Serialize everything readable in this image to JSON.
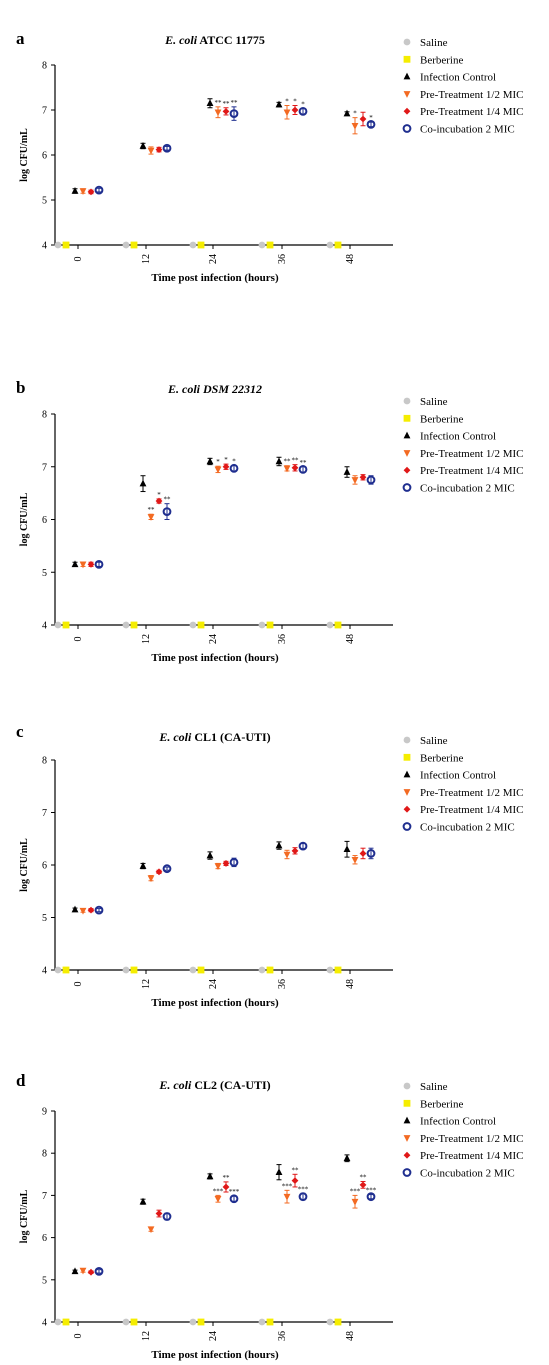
{
  "colors": {
    "saline": "#c8c8c8",
    "berberine": "#f5ed00",
    "infection_control": "#000000",
    "pre_half": "#f36a22",
    "pre_quarter": "#e01818",
    "coinc": "#1f2e8f"
  },
  "chart_data": [
    {
      "type": "scatter",
      "panel": "a",
      "title_parts": [
        {
          "t": "E. coli",
          "i": true
        },
        {
          "t": " ATCC 11775",
          "i": false
        }
      ],
      "xlabel": "Time post infection (hours)",
      "ylabel": "log CFU/mL",
      "categories": [
        "0",
        "12",
        "24",
        "36",
        "48"
      ],
      "ylim": [
        4,
        8
      ],
      "yticks": [
        "4",
        "5",
        "6",
        "7",
        "8"
      ],
      "legend_labels": [
        "Saline",
        "Berberine",
        "Infection Control",
        "Pre-Treatment 1/2 MIC",
        "Pre-Treatment 1/4 MIC",
        "Co-incubation 2 MIC"
      ],
      "series": [
        {
          "name": "Saline",
          "values": [
            4,
            4,
            4,
            4,
            4
          ],
          "err": [
            0,
            0,
            0,
            0,
            0
          ]
        },
        {
          "name": "Berberine",
          "values": [
            4,
            4,
            4,
            4,
            4
          ],
          "err": [
            0,
            0,
            0,
            0,
            0
          ]
        },
        {
          "name": "Infection Control",
          "values": [
            5.2,
            6.2,
            7.15,
            7.12,
            6.92
          ],
          "err": [
            0.05,
            0.06,
            0.1,
            0.05,
            0.04
          ]
        },
        {
          "name": "Pre-Treatment 1/2 MIC",
          "values": [
            5.2,
            6.1,
            6.95,
            6.95,
            6.65
          ],
          "err": [
            0.05,
            0.08,
            0.12,
            0.15,
            0.18
          ]
        },
        {
          "name": "Pre-Treatment 1/4 MIC",
          "values": [
            5.18,
            6.12,
            6.97,
            7.0,
            6.8
          ],
          "err": [
            0.04,
            0.05,
            0.08,
            0.1,
            0.15
          ]
        },
        {
          "name": "Co-incubation 2 MIC",
          "values": [
            5.22,
            6.15,
            6.92,
            6.97,
            6.68
          ],
          "err": [
            0.04,
            0.04,
            0.15,
            0.06,
            0.05
          ]
        }
      ],
      "sig": [
        [
          "",
          "",
          "",
          "",
          ""
        ],
        [
          "",
          "",
          "",
          "",
          ""
        ],
        [
          "",
          "",
          "",
          "",
          ""
        ],
        [
          "",
          "",
          "**",
          "*",
          "*"
        ],
        [
          "",
          "",
          "**",
          "*",
          ""
        ],
        [
          "",
          "",
          "**",
          "*",
          "*"
        ]
      ]
    },
    {
      "type": "scatter",
      "panel": "b",
      "title_parts": [
        {
          "t": "E. coli DSM 22312",
          "i": true
        }
      ],
      "xlabel": "Time post infection (hours)",
      "ylabel": "log CFU/mL",
      "categories": [
        "0",
        "12",
        "24",
        "36",
        "48"
      ],
      "ylim": [
        4,
        8
      ],
      "yticks": [
        "4",
        "5",
        "6",
        "7",
        "8"
      ],
      "legend_labels": [
        "Saline",
        "Berberine",
        "Infection Control",
        "Pre-Treatment 1/2 MIC",
        "Pre-Treatment 1/4 MIC",
        "Co-incubation 2 MIC"
      ],
      "series": [
        {
          "name": "Saline",
          "values": [
            4,
            4,
            4,
            4,
            4
          ],
          "err": [
            0,
            0,
            0,
            0,
            0
          ]
        },
        {
          "name": "Berberine",
          "values": [
            4,
            4,
            4,
            4,
            4
          ],
          "err": [
            0,
            0,
            0,
            0,
            0
          ]
        },
        {
          "name": "Infection Control",
          "values": [
            5.15,
            6.68,
            7.1,
            7.1,
            6.9
          ],
          "err": [
            0.04,
            0.15,
            0.06,
            0.08,
            0.1
          ]
        },
        {
          "name": "Pre-Treatment 1/2 MIC",
          "values": [
            5.15,
            6.05,
            6.95,
            6.97,
            6.75
          ],
          "err": [
            0.04,
            0.05,
            0.06,
            0.05,
            0.08
          ]
        },
        {
          "name": "Pre-Treatment 1/4 MIC",
          "values": [
            5.15,
            6.35,
            7.0,
            6.98,
            6.8
          ],
          "err": [
            0.04,
            0.04,
            0.05,
            0.06,
            0.05
          ]
        },
        {
          "name": "Co-incubation 2 MIC",
          "values": [
            5.15,
            6.15,
            6.97,
            6.95,
            6.75
          ],
          "err": [
            0.04,
            0.15,
            0.05,
            0.05,
            0.08
          ]
        }
      ],
      "sig": [
        [
          "",
          "",
          "",
          "",
          ""
        ],
        [
          "",
          "",
          "",
          "",
          ""
        ],
        [
          "",
          "",
          "",
          "",
          ""
        ],
        [
          "",
          "**",
          "*",
          "**",
          ""
        ],
        [
          "",
          "*",
          "*",
          "**",
          ""
        ],
        [
          "",
          "**",
          "*",
          "**",
          ""
        ]
      ]
    },
    {
      "type": "scatter",
      "panel": "c",
      "title_parts": [
        {
          "t": "E. coli",
          "i": true
        },
        {
          "t": " CL1 (CA-UTI)",
          "i": false
        }
      ],
      "xlabel": "Time post infection (hours)",
      "ylabel": "log CFU/mL",
      "categories": [
        "0",
        "12",
        "24",
        "36",
        "48"
      ],
      "ylim": [
        4,
        8
      ],
      "yticks": [
        "4",
        "5",
        "6",
        "7",
        "8"
      ],
      "legend_labels": [
        "Saline",
        "Berberine",
        "Infection Control",
        "Pre-Treatment 1/2 MIC",
        "Pre-Treatment 1/4 MIC",
        "Co-incubation 2 MIC"
      ],
      "series": [
        {
          "name": "Saline",
          "values": [
            4,
            4,
            4,
            4,
            4
          ],
          "err": [
            0,
            0,
            0,
            0,
            0
          ]
        },
        {
          "name": "Berberine",
          "values": [
            4,
            4,
            4,
            4,
            4
          ],
          "err": [
            0,
            0,
            0,
            0,
            0
          ]
        },
        {
          "name": "Infection Control",
          "values": [
            5.15,
            5.98,
            6.18,
            6.37,
            6.3
          ],
          "err": [
            0.03,
            0.05,
            0.07,
            0.07,
            0.15
          ]
        },
        {
          "name": "Pre-Treatment 1/2 MIC",
          "values": [
            5.13,
            5.75,
            5.98,
            6.2,
            6.1
          ],
          "err": [
            0.03,
            0.05,
            0.05,
            0.08,
            0.08
          ]
        },
        {
          "name": "Pre-Treatment 1/4 MIC",
          "values": [
            5.14,
            5.87,
            6.03,
            6.27,
            6.22
          ],
          "err": [
            0.03,
            0.03,
            0.04,
            0.06,
            0.1
          ]
        },
        {
          "name": "Co-incubation 2 MIC",
          "values": [
            5.14,
            5.93,
            6.05,
            6.36,
            6.22
          ],
          "err": [
            0.03,
            0.03,
            0.08,
            0.05,
            0.1
          ]
        }
      ],
      "sig": [
        [
          "",
          "",
          "",
          "",
          ""
        ],
        [
          "",
          "",
          "",
          "",
          ""
        ],
        [
          "",
          "",
          "",
          "",
          ""
        ],
        [
          "",
          "",
          "",
          "",
          ""
        ],
        [
          "",
          "",
          "",
          "",
          ""
        ],
        [
          "",
          "",
          "",
          "",
          ""
        ]
      ]
    },
    {
      "type": "scatter",
      "panel": "d",
      "title_parts": [
        {
          "t": "E. coli",
          "i": true
        },
        {
          "t": " CL2 (CA-UTI)",
          "i": false
        }
      ],
      "xlabel": "Time post infection (hours)",
      "ylabel": "log CFU/mL",
      "categories": [
        "0",
        "12",
        "24",
        "36",
        "48"
      ],
      "ylim": [
        4,
        9
      ],
      "yticks": [
        "4",
        "5",
        "6",
        "7",
        "8",
        "9"
      ],
      "legend_labels": [
        "Saline",
        "Berberine",
        "Infection Control",
        "Pre-Treatment 1/2 MIC",
        "Pre-Treatment 1/4 MIC",
        "Co-incubation 2 MIC"
      ],
      "series": [
        {
          "name": "Saline",
          "values": [
            4,
            4,
            4,
            4,
            4
          ],
          "err": [
            0,
            0,
            0,
            0,
            0
          ]
        },
        {
          "name": "Berberine",
          "values": [
            4,
            4,
            4,
            4,
            4
          ],
          "err": [
            0,
            0,
            0,
            0,
            0
          ]
        },
        {
          "name": "Infection Control",
          "values": [
            5.2,
            6.85,
            7.45,
            7.55,
            7.88
          ],
          "err": [
            0.03,
            0.06,
            0.06,
            0.18,
            0.08
          ]
        },
        {
          "name": "Pre-Treatment 1/2 MIC",
          "values": [
            5.22,
            6.2,
            6.92,
            6.97,
            6.85
          ],
          "err": [
            0.04,
            0.05,
            0.08,
            0.15,
            0.15
          ]
        },
        {
          "name": "Pre-Treatment 1/4 MIC",
          "values": [
            5.18,
            6.57,
            7.2,
            7.35,
            7.25
          ],
          "err": [
            0.03,
            0.08,
            0.12,
            0.15,
            0.08
          ]
        },
        {
          "name": "Co-incubation 2 MIC",
          "values": [
            5.2,
            6.5,
            6.92,
            6.97,
            6.97
          ],
          "err": [
            0.04,
            0.08,
            0.06,
            0.08,
            0.05
          ]
        }
      ],
      "sig": [
        [
          "",
          "",
          "",
          "",
          ""
        ],
        [
          "",
          "",
          "",
          "",
          ""
        ],
        [
          "",
          "",
          "",
          "",
          ""
        ],
        [
          "",
          "",
          "***",
          "***",
          "***"
        ],
        [
          "",
          "",
          "**",
          "**",
          "**"
        ],
        [
          "",
          "",
          "***",
          "***",
          "***"
        ]
      ]
    }
  ]
}
